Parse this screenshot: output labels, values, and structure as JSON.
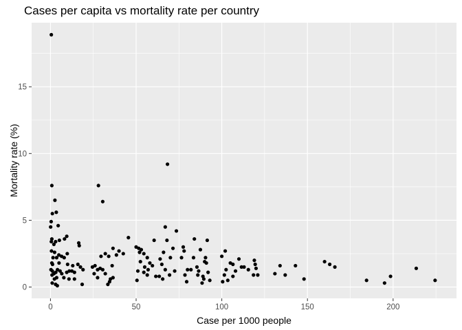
{
  "chart_data": {
    "type": "scatter",
    "title": "Cases per capita vs mortality rate per country",
    "xlabel": "Case per 1000 people",
    "ylabel": "Mortality rate (%)",
    "xlim": [
      -11,
      237
    ],
    "ylim": [
      -0.85,
      19.8
    ],
    "x_ticks": [
      0,
      50,
      100,
      150,
      200
    ],
    "x_tick_labels": [
      "0",
      "50",
      "100",
      "150",
      "200"
    ],
    "y_ticks": [
      0,
      5,
      10,
      15
    ],
    "y_tick_labels": [
      "0",
      "5",
      "10",
      "15"
    ],
    "grid": true,
    "legend": "none",
    "colors": {
      "panel": "#ebebeb",
      "grid": "#ffffff",
      "point": "#000000",
      "tick": "#333333"
    },
    "points": [
      [
        0.5,
        18.9
      ],
      [
        0.8,
        7.6
      ],
      [
        2.6,
        6.5
      ],
      [
        3.4,
        5.6
      ],
      [
        1.1,
        5.5
      ],
      [
        0.4,
        4.9
      ],
      [
        0.1,
        4.5
      ],
      [
        4.5,
        4.6
      ],
      [
        0.8,
        3.6
      ],
      [
        0.5,
        3.4
      ],
      [
        3.0,
        3.4
      ],
      [
        5.2,
        3.5
      ],
      [
        8.2,
        3.6
      ],
      [
        9.5,
        3.8
      ],
      [
        2.0,
        3.2
      ],
      [
        16.5,
        3.3
      ],
      [
        16.8,
        3.1
      ],
      [
        0.6,
        2.7
      ],
      [
        2.4,
        2.6
      ],
      [
        4.9,
        2.4
      ],
      [
        6.5,
        2.3
      ],
      [
        8.0,
        2.2
      ],
      [
        9.8,
        2.5
      ],
      [
        1.5,
        2.2
      ],
      [
        3.6,
        2.2
      ],
      [
        0.8,
        1.8
      ],
      [
        1.2,
        1.7
      ],
      [
        5.0,
        1.8
      ],
      [
        0.3,
        1.3
      ],
      [
        1.1,
        1.2
      ],
      [
        2.0,
        1.0
      ],
      [
        3.1,
        1.1
      ],
      [
        4.1,
        1.3
      ],
      [
        5.6,
        1.2
      ],
      [
        6.6,
        1.0
      ],
      [
        0.9,
        0.9
      ],
      [
        2.3,
        0.6
      ],
      [
        3.6,
        0.7
      ],
      [
        7.8,
        0.7
      ],
      [
        9.5,
        1.1
      ],
      [
        11.0,
        1.2
      ],
      [
        12.5,
        1.2
      ],
      [
        14.0,
        1.1
      ],
      [
        10.0,
        1.7
      ],
      [
        13.0,
        1.6
      ],
      [
        16.0,
        1.7
      ],
      [
        17.5,
        1.5
      ],
      [
        10.8,
        0.6
      ],
      [
        14.0,
        0.6
      ],
      [
        1.0,
        0.3
      ],
      [
        3.0,
        0.2
      ],
      [
        4.0,
        0.1
      ],
      [
        18.5,
        0.2
      ],
      [
        19.0,
        1.3
      ],
      [
        28.0,
        7.6
      ],
      [
        30.5,
        6.4
      ],
      [
        24.5,
        1.5
      ],
      [
        26.0,
        1.6
      ],
      [
        27.5,
        1.3
      ],
      [
        29.0,
        1.4
      ],
      [
        25.5,
        1.0
      ],
      [
        27.5,
        0.7
      ],
      [
        32.0,
        2.5
      ],
      [
        34.0,
        2.3
      ],
      [
        32.0,
        1.0
      ],
      [
        35.0,
        0.6
      ],
      [
        34.5,
        0.4
      ],
      [
        33.5,
        0.2
      ],
      [
        36.5,
        0.7
      ],
      [
        36.5,
        2.9
      ],
      [
        38.5,
        2.4
      ],
      [
        40.0,
        2.7
      ],
      [
        42.5,
        2.5
      ],
      [
        45.5,
        3.7
      ],
      [
        30.5,
        1.3
      ],
      [
        29.5,
        2.3
      ],
      [
        36.0,
        1.6
      ],
      [
        50.0,
        3.0
      ],
      [
        51.5,
        2.9
      ],
      [
        52.0,
        2.6
      ],
      [
        53.0,
        2.8
      ],
      [
        54.5,
        2.5
      ],
      [
        56.5,
        2.2
      ],
      [
        58.0,
        1.8
      ],
      [
        51.0,
        1.2
      ],
      [
        52.5,
        1.9
      ],
      [
        55.0,
        1.5
      ],
      [
        57.0,
        1.3
      ],
      [
        59.5,
        1.6
      ],
      [
        56.5,
        0.9
      ],
      [
        61.5,
        0.8
      ],
      [
        54.5,
        1.1
      ],
      [
        60.5,
        3.5
      ],
      [
        64.0,
        2.1
      ],
      [
        66.0,
        2.6
      ],
      [
        67.0,
        4.5
      ],
      [
        68.0,
        3.5
      ],
      [
        70.0,
        2.2
      ],
      [
        71.5,
        2.9
      ],
      [
        73.5,
        4.2
      ],
      [
        68.3,
        9.2
      ],
      [
        65.0,
        1.7
      ],
      [
        67.0,
        1.3
      ],
      [
        69.5,
        0.9
      ],
      [
        72.5,
        1.2
      ],
      [
        63.5,
        0.8
      ],
      [
        50.5,
        0.5
      ],
      [
        65.5,
        0.6
      ],
      [
        77.5,
        3.0
      ],
      [
        78.0,
        2.7
      ],
      [
        80.0,
        1.3
      ],
      [
        79.5,
        0.4
      ],
      [
        76.5,
        2.2
      ],
      [
        78.5,
        0.9
      ],
      [
        82.0,
        1.3
      ],
      [
        83.5,
        2.2
      ],
      [
        84.0,
        3.6
      ],
      [
        85.5,
        1.5
      ],
      [
        86.5,
        1.2
      ],
      [
        87.5,
        2.8
      ],
      [
        89.0,
        0.8
      ],
      [
        89.5,
        0.6
      ],
      [
        90.0,
        1.9
      ],
      [
        91.0,
        1.8
      ],
      [
        91.5,
        3.5
      ],
      [
        90.5,
        2.2
      ],
      [
        86.0,
        0.9
      ],
      [
        92.0,
        1.1
      ],
      [
        93.0,
        0.5
      ],
      [
        88.5,
        0.3
      ],
      [
        100.0,
        2.3
      ],
      [
        102.0,
        2.7
      ],
      [
        101.5,
        0.9
      ],
      [
        102.5,
        1.3
      ],
      [
        103.5,
        0.5
      ],
      [
        105.0,
        1.8
      ],
      [
        106.5,
        1.7
      ],
      [
        108.0,
        1.2
      ],
      [
        110.0,
        2.1
      ],
      [
        111.5,
        1.5
      ],
      [
        113.0,
        1.5
      ],
      [
        115.5,
        1.3
      ],
      [
        119.0,
        2.0
      ],
      [
        119.5,
        1.7
      ],
      [
        120.0,
        1.4
      ],
      [
        118.5,
        0.9
      ],
      [
        121.0,
        0.9
      ],
      [
        100.5,
        0.4
      ],
      [
        106.5,
        0.8
      ],
      [
        131.0,
        1.0
      ],
      [
        134.0,
        1.6
      ],
      [
        137.0,
        0.9
      ],
      [
        143.0,
        1.6
      ],
      [
        148.0,
        0.6
      ],
      [
        160.0,
        1.9
      ],
      [
        163.0,
        1.7
      ],
      [
        166.0,
        1.5
      ],
      [
        184.5,
        0.5
      ],
      [
        195.0,
        0.3
      ],
      [
        198.5,
        0.8
      ],
      [
        213.5,
        1.4
      ],
      [
        224.5,
        0.5
      ]
    ]
  }
}
